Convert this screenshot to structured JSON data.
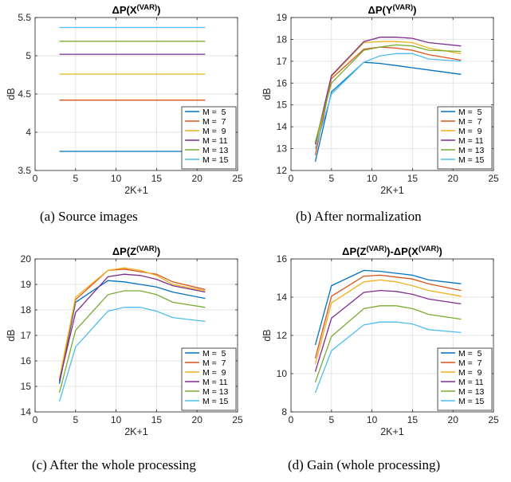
{
  "colors": {
    "M = 5": "#0072BD",
    "M = 7": "#D95319",
    "M = 9": "#EDB120",
    "M = 11": "#7E2F8E",
    "M = 13": "#77AC30",
    "M = 15": "#4DBEEE"
  },
  "chart_data": [
    {
      "type": "line",
      "caption": "(a) Source images",
      "title": "ΔP(X(VAR))",
      "title_parts": {
        "main": "ΔP(X",
        "sup": "(VAR)",
        "end": ")"
      },
      "xlabel": "2K+1",
      "ylabel": "dB",
      "xlim": [
        0,
        25
      ],
      "ylim": [
        3.5,
        5.5
      ],
      "xticks": [
        0,
        5,
        10,
        15,
        20,
        25
      ],
      "yticks": [
        3.5,
        4,
        4.5,
        5,
        5.5
      ],
      "ytick_labels": [
        "3.5",
        "4",
        "4.5",
        "5",
        "5.5"
      ],
      "grid": true,
      "legend_position": "bottom-right",
      "x": [
        3,
        5,
        7,
        9,
        11,
        13,
        15,
        17,
        19,
        21
      ],
      "series": [
        {
          "name": "M =  5",
          "values": [
            3.75,
            3.75,
            3.75,
            3.75,
            3.75,
            3.75,
            3.75,
            3.75,
            3.75,
            3.75
          ]
        },
        {
          "name": "M =  7",
          "values": [
            4.42,
            4.42,
            4.42,
            4.42,
            4.42,
            4.42,
            4.42,
            4.42,
            4.42,
            4.42
          ]
        },
        {
          "name": "M =  9",
          "values": [
            4.76,
            4.76,
            4.76,
            4.76,
            4.76,
            4.76,
            4.76,
            4.76,
            4.76,
            4.76
          ]
        },
        {
          "name": "M = 11",
          "values": [
            5.02,
            5.02,
            5.02,
            5.02,
            5.02,
            5.02,
            5.02,
            5.02,
            5.02,
            5.02
          ]
        },
        {
          "name": "M = 13",
          "values": [
            5.19,
            5.19,
            5.19,
            5.19,
            5.19,
            5.19,
            5.19,
            5.19,
            5.19,
            5.19
          ]
        },
        {
          "name": "M = 15",
          "values": [
            5.37,
            5.37,
            5.37,
            5.37,
            5.37,
            5.37,
            5.37,
            5.37,
            5.37,
            5.37
          ]
        }
      ]
    },
    {
      "type": "line",
      "caption": "(b) After normalization",
      "title": "ΔP(Y(VAR))",
      "title_parts": {
        "main": "ΔP(Y",
        "sup": "(VAR)",
        "end": ")"
      },
      "xlabel": "2K+1",
      "ylabel": "dB",
      "xlim": [
        0,
        25
      ],
      "ylim": [
        12,
        19
      ],
      "xticks": [
        0,
        5,
        10,
        15,
        20,
        25
      ],
      "yticks": [
        12,
        13,
        14,
        15,
        16,
        17,
        18,
        19
      ],
      "ytick_labels": [
        "12",
        "13",
        "14",
        "15",
        "16",
        "17",
        "18",
        "19"
      ],
      "grid": true,
      "legend_position": "bottom-right",
      "x": [
        3,
        5,
        9,
        11,
        13,
        15,
        17,
        21
      ],
      "series": [
        {
          "name": "M =  5",
          "values": [
            12.4,
            15.6,
            16.95,
            16.9,
            16.8,
            16.7,
            16.6,
            16.4
          ]
        },
        {
          "name": "M =  7",
          "values": [
            12.7,
            16.2,
            17.55,
            17.65,
            17.6,
            17.5,
            17.3,
            17.05
          ]
        },
        {
          "name": "M =  9",
          "values": [
            13.0,
            16.3,
            17.85,
            17.9,
            17.9,
            17.85,
            17.6,
            17.35
          ]
        },
        {
          "name": "M = 11",
          "values": [
            13.2,
            16.35,
            17.9,
            18.1,
            18.1,
            18.05,
            17.85,
            17.7
          ]
        },
        {
          "name": "M = 13",
          "values": [
            13.3,
            16.0,
            17.5,
            17.65,
            17.75,
            17.7,
            17.5,
            17.45
          ]
        },
        {
          "name": "M = 15",
          "values": [
            13.0,
            15.5,
            16.95,
            17.25,
            17.35,
            17.35,
            17.1,
            17.0
          ]
        }
      ]
    },
    {
      "type": "line",
      "caption": "(c) After the whole processing",
      "title": "ΔP(Z(VAR))",
      "title_parts": {
        "main": "ΔP(Z",
        "sup": "(VAR)",
        "end": ")"
      },
      "xlabel": "2K+1",
      "ylabel": "dB",
      "xlim": [
        0,
        25
      ],
      "ylim": [
        14,
        20
      ],
      "xticks": [
        0,
        5,
        10,
        15,
        20,
        25
      ],
      "yticks": [
        14,
        15,
        16,
        17,
        18,
        19,
        20
      ],
      "ytick_labels": [
        "14",
        "15",
        "16",
        "17",
        "18",
        "19",
        "20"
      ],
      "grid": true,
      "legend_position": "bottom-right",
      "x": [
        3,
        5,
        9,
        11,
        13,
        15,
        17,
        21
      ],
      "series": [
        {
          "name": "M =  5",
          "values": [
            15.1,
            18.3,
            19.15,
            19.1,
            19.0,
            18.9,
            18.7,
            18.45
          ]
        },
        {
          "name": "M =  7",
          "values": [
            15.2,
            18.4,
            19.55,
            19.6,
            19.5,
            19.4,
            19.1,
            18.8
          ]
        },
        {
          "name": "M =  9",
          "values": [
            15.3,
            18.5,
            19.55,
            19.65,
            19.55,
            19.35,
            19.0,
            18.75
          ]
        },
        {
          "name": "M = 11",
          "values": [
            15.2,
            17.9,
            19.3,
            19.4,
            19.35,
            19.2,
            18.95,
            18.7
          ]
        },
        {
          "name": "M = 13",
          "values": [
            14.75,
            17.2,
            18.6,
            18.75,
            18.75,
            18.6,
            18.3,
            18.1
          ]
        },
        {
          "name": "M = 15",
          "values": [
            14.4,
            16.55,
            17.95,
            18.1,
            18.1,
            17.95,
            17.7,
            17.55
          ]
        }
      ]
    },
    {
      "type": "line",
      "caption": "(d) Gain (whole processing)",
      "title": "ΔP(Z(VAR))-ΔP(X(VAR))",
      "title_parts": {
        "main": "ΔP(Z",
        "sup": "(VAR)",
        "end": ")-ΔP(X",
        "sup2": "(VAR)",
        "end2": ")"
      },
      "xlabel": "2K+1",
      "ylabel": "dB",
      "xlim": [
        0,
        25
      ],
      "ylim": [
        8,
        16
      ],
      "xticks": [
        0,
        5,
        10,
        15,
        20,
        25
      ],
      "yticks": [
        8,
        10,
        12,
        14,
        16
      ],
      "ytick_labels": [
        "8",
        "10",
        "12",
        "14",
        "16"
      ],
      "grid": true,
      "legend_position": "bottom-right",
      "x": [
        3,
        5,
        9,
        11,
        13,
        15,
        17,
        21
      ],
      "series": [
        {
          "name": "M =  5",
          "values": [
            11.5,
            14.6,
            15.4,
            15.35,
            15.25,
            15.15,
            14.9,
            14.7
          ]
        },
        {
          "name": "M =  7",
          "values": [
            10.8,
            14.05,
            15.1,
            15.15,
            15.05,
            14.95,
            14.7,
            14.35
          ]
        },
        {
          "name": "M =  9",
          "values": [
            10.5,
            13.7,
            14.8,
            14.9,
            14.8,
            14.6,
            14.35,
            14.05
          ]
        },
        {
          "name": "M = 11",
          "values": [
            10.1,
            12.9,
            14.25,
            14.35,
            14.3,
            14.15,
            13.9,
            13.65
          ]
        },
        {
          "name": "M = 13",
          "values": [
            9.55,
            11.95,
            13.4,
            13.55,
            13.55,
            13.4,
            13.1,
            12.85
          ]
        },
        {
          "name": "M = 15",
          "values": [
            9.0,
            11.2,
            12.55,
            12.7,
            12.7,
            12.6,
            12.3,
            12.15
          ]
        }
      ]
    }
  ]
}
